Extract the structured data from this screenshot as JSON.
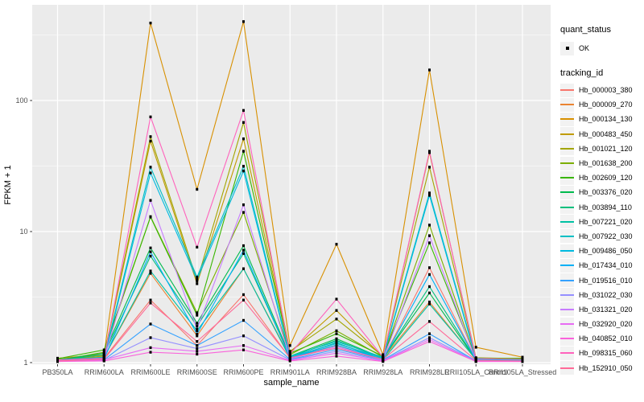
{
  "figure": {
    "background": "#FFFFFF",
    "panel_background": "#EBEBEB",
    "grid_color": "#FFFFFF",
    "tick_color": "#333333",
    "tick_label_color": "#4D4D4D",
    "point_color": "#000000"
  },
  "legend": {
    "quant_status": {
      "title": "quant_status",
      "items": [
        {
          "label": "OK"
        }
      ]
    },
    "tracking_id": {
      "title": "tracking_id"
    }
  },
  "chart_data": {
    "type": "line",
    "title": "",
    "xlabel": "sample_name",
    "ylabel": "FPKM + 1",
    "y_scale": "log10",
    "ylim": [
      1,
      537
    ],
    "y_ticks": [
      1,
      10,
      100
    ],
    "y_tick_labels": [
      "1",
      "10",
      "100"
    ],
    "y_minor_ticks": [
      3.1623,
      31.623,
      316.23
    ],
    "grid": true,
    "legend_position": "right",
    "marker_note": "black point on every value (quant_status = OK)",
    "categories": [
      "PB350LA",
      "RRIM600LA",
      "RRIM600LE",
      "RRIM600SE",
      "RRIM600PE",
      "RRIM901LA",
      "RRIM928BA",
      "RRIM928LA",
      "RRIM928LE",
      "RRII105LA_Control",
      "RRII105LA_Stressed"
    ],
    "series": [
      {
        "name": "Hb_000003_380",
        "color": "#F8766D",
        "values": [
          1.05,
          1.08,
          3.0,
          1.35,
          3.3,
          1.08,
          1.35,
          1.06,
          5.3,
          1.05,
          1.04
        ]
      },
      {
        "name": "Hb_000009_270",
        "color": "#EA8331",
        "values": [
          1.04,
          1.1,
          4.8,
          1.6,
          5.2,
          1.1,
          1.4,
          1.08,
          2.9,
          1.05,
          1.05
        ]
      },
      {
        "name": "Hb_000134_130",
        "color": "#D89000",
        "values": [
          1.08,
          1.15,
          390,
          21,
          400,
          1.35,
          8.0,
          1.15,
          171,
          1.31,
          1.1
        ]
      },
      {
        "name": "Hb_000483_450",
        "color": "#C09B00",
        "values": [
          1.05,
          1.12,
          49,
          4.0,
          51,
          1.2,
          2.5,
          1.1,
          40,
          1.09,
          1.07
        ]
      },
      {
        "name": "Hb_001021_120",
        "color": "#A3A500",
        "values": [
          1.06,
          1.14,
          53,
          4.2,
          68,
          1.22,
          2.15,
          1.12,
          31,
          1.08,
          1.06
        ]
      },
      {
        "name": "Hb_001638_200",
        "color": "#7CAE00",
        "values": [
          1.04,
          1.2,
          13,
          2.4,
          14,
          1.15,
          1.75,
          1.1,
          11.2,
          1.06,
          1.05
        ]
      },
      {
        "name": "Hb_002609_120",
        "color": "#39B600",
        "values": [
          1.07,
          1.25,
          12.9,
          2.3,
          41,
          1.18,
          1.66,
          1.12,
          8.2,
          1.07,
          1.08
        ]
      },
      {
        "name": "Hb_003376_020",
        "color": "#00BB4E",
        "values": [
          1.05,
          1.18,
          7.5,
          2.0,
          7.8,
          1.12,
          1.52,
          1.08,
          3.4,
          1.05,
          1.04
        ]
      },
      {
        "name": "Hb_003894_110",
        "color": "#00BF7D",
        "values": [
          1.04,
          1.15,
          6.5,
          1.9,
          6.8,
          1.1,
          1.48,
          1.07,
          3.8,
          1.05,
          1.05
        ]
      },
      {
        "name": "Hb_007221_020",
        "color": "#00C1A3",
        "values": [
          1.05,
          1.1,
          5.0,
          1.75,
          5.2,
          1.08,
          1.42,
          1.05,
          2.8,
          1.06,
          1.04
        ]
      },
      {
        "name": "Hb_007922_030",
        "color": "#00BFC4",
        "values": [
          1.04,
          1.09,
          31,
          4.5,
          31.5,
          1.12,
          1.45,
          1.1,
          19.7,
          1.08,
          1.05
        ]
      },
      {
        "name": "Hb_009486_050",
        "color": "#00BAE0",
        "values": [
          1.03,
          1.07,
          28,
          4.3,
          29,
          1.1,
          1.4,
          1.08,
          18.9,
          1.06,
          1.04
        ]
      },
      {
        "name": "Hb_017434_010",
        "color": "#00B0F6",
        "values": [
          1.04,
          1.06,
          7.0,
          1.65,
          7.2,
          1.09,
          1.36,
          1.06,
          4.7,
          1.05,
          1.03
        ]
      },
      {
        "name": "Hb_019516_010",
        "color": "#35A2FF",
        "values": [
          1.03,
          1.05,
          1.97,
          1.35,
          2.1,
          1.06,
          1.26,
          1.05,
          1.66,
          1.03,
          1.03
        ]
      },
      {
        "name": "Hb_031022_030",
        "color": "#9590FF",
        "values": [
          1.02,
          1.04,
          1.55,
          1.28,
          1.6,
          1.05,
          1.22,
          1.04,
          1.55,
          1.03,
          1.02
        ]
      },
      {
        "name": "Hb_031321_020",
        "color": "#C77CFF",
        "values": [
          1.03,
          1.06,
          17.3,
          1.8,
          16,
          1.07,
          1.32,
          1.05,
          9.3,
          1.04,
          1.03
        ]
      },
      {
        "name": "Hb_032920_020",
        "color": "#E76BF3",
        "values": [
          1.02,
          1.05,
          1.3,
          1.22,
          1.35,
          1.04,
          1.18,
          1.03,
          1.5,
          1.02,
          1.02
        ]
      },
      {
        "name": "Hb_040852_010",
        "color": "#FA62DB",
        "values": [
          1.02,
          1.03,
          1.2,
          1.16,
          1.25,
          1.03,
          1.12,
          1.02,
          1.45,
          1.02,
          1.02
        ]
      },
      {
        "name": "Hb_098315_060",
        "color": "#FF62BC",
        "values": [
          1.05,
          1.08,
          75,
          7.6,
          84,
          1.16,
          3.05,
          1.1,
          41,
          1.07,
          1.06
        ]
      },
      {
        "name": "Hb_152910_050",
        "color": "#FF6A98",
        "values": [
          1.03,
          1.06,
          2.85,
          1.45,
          3.0,
          1.09,
          1.29,
          1.06,
          2.06,
          1.04,
          1.03
        ]
      }
    ]
  }
}
